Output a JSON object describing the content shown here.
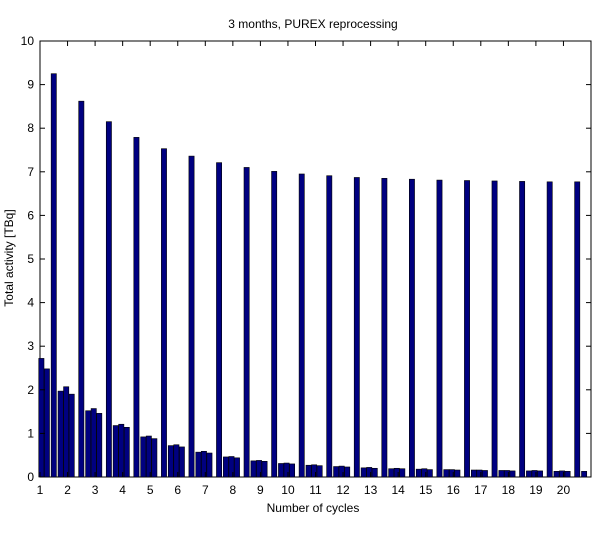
{
  "chart_data": {
    "type": "bar",
    "title": "3 months, PUREX reprocessing",
    "xlabel": "Number of cycles",
    "ylabel": "Total activity [TBq]",
    "xlim": [
      1,
      21
    ],
    "ylim": [
      0,
      10
    ],
    "xticks": [
      1,
      2,
      3,
      4,
      5,
      6,
      7,
      8,
      9,
      10,
      11,
      12,
      13,
      14,
      15,
      16,
      17,
      18,
      19,
      20
    ],
    "yticks": [
      0,
      1,
      2,
      3,
      4,
      5,
      6,
      7,
      8,
      9,
      10
    ],
    "bar_color": "#000080",
    "grid": false,
    "bars": [
      {
        "x": 1.05,
        "y": 2.72
      },
      {
        "x": 1.25,
        "y": 2.48
      },
      {
        "x": 1.5,
        "y": 9.25
      },
      {
        "x": 1.75,
        "y": 1.97
      },
      {
        "x": 1.95,
        "y": 2.07
      },
      {
        "x": 2.15,
        "y": 1.9
      },
      {
        "x": 2.5,
        "y": 8.62
      },
      {
        "x": 2.75,
        "y": 1.52
      },
      {
        "x": 2.95,
        "y": 1.57
      },
      {
        "x": 3.15,
        "y": 1.46
      },
      {
        "x": 3.5,
        "y": 8.15
      },
      {
        "x": 3.75,
        "y": 1.18
      },
      {
        "x": 3.95,
        "y": 1.21
      },
      {
        "x": 4.15,
        "y": 1.14
      },
      {
        "x": 4.5,
        "y": 7.79
      },
      {
        "x": 4.75,
        "y": 0.92
      },
      {
        "x": 4.95,
        "y": 0.94
      },
      {
        "x": 5.15,
        "y": 0.88
      },
      {
        "x": 5.5,
        "y": 7.53
      },
      {
        "x": 5.75,
        "y": 0.72
      },
      {
        "x": 5.95,
        "y": 0.74
      },
      {
        "x": 6.15,
        "y": 0.69
      },
      {
        "x": 6.5,
        "y": 7.36
      },
      {
        "x": 6.75,
        "y": 0.57
      },
      {
        "x": 6.95,
        "y": 0.59
      },
      {
        "x": 7.15,
        "y": 0.55
      },
      {
        "x": 7.5,
        "y": 7.21
      },
      {
        "x": 7.75,
        "y": 0.46
      },
      {
        "x": 7.95,
        "y": 0.47
      },
      {
        "x": 8.15,
        "y": 0.44
      },
      {
        "x": 8.5,
        "y": 7.1
      },
      {
        "x": 8.75,
        "y": 0.37
      },
      {
        "x": 8.95,
        "y": 0.38
      },
      {
        "x": 9.15,
        "y": 0.36
      },
      {
        "x": 9.5,
        "y": 7.01
      },
      {
        "x": 9.75,
        "y": 0.31
      },
      {
        "x": 9.95,
        "y": 0.32
      },
      {
        "x": 10.15,
        "y": 0.3
      },
      {
        "x": 10.5,
        "y": 6.95
      },
      {
        "x": 10.75,
        "y": 0.27
      },
      {
        "x": 10.95,
        "y": 0.28
      },
      {
        "x": 11.15,
        "y": 0.26
      },
      {
        "x": 11.5,
        "y": 6.91
      },
      {
        "x": 11.75,
        "y": 0.24
      },
      {
        "x": 11.95,
        "y": 0.25
      },
      {
        "x": 12.15,
        "y": 0.23
      },
      {
        "x": 12.5,
        "y": 6.87
      },
      {
        "x": 12.75,
        "y": 0.21
      },
      {
        "x": 12.95,
        "y": 0.22
      },
      {
        "x": 13.15,
        "y": 0.2
      },
      {
        "x": 13.5,
        "y": 6.85
      },
      {
        "x": 13.75,
        "y": 0.19
      },
      {
        "x": 13.95,
        "y": 0.2
      },
      {
        "x": 14.15,
        "y": 0.19
      },
      {
        "x": 14.5,
        "y": 6.83
      },
      {
        "x": 14.75,
        "y": 0.18
      },
      {
        "x": 14.95,
        "y": 0.19
      },
      {
        "x": 15.15,
        "y": 0.17
      },
      {
        "x": 15.5,
        "y": 6.81
      },
      {
        "x": 15.75,
        "y": 0.17
      },
      {
        "x": 15.95,
        "y": 0.17
      },
      {
        "x": 16.15,
        "y": 0.16
      },
      {
        "x": 16.5,
        "y": 6.8
      },
      {
        "x": 16.75,
        "y": 0.16
      },
      {
        "x": 16.95,
        "y": 0.16
      },
      {
        "x": 17.15,
        "y": 0.15
      },
      {
        "x": 17.5,
        "y": 6.79
      },
      {
        "x": 17.75,
        "y": 0.15
      },
      {
        "x": 17.95,
        "y": 0.15
      },
      {
        "x": 18.15,
        "y": 0.14
      },
      {
        "x": 18.5,
        "y": 6.78
      },
      {
        "x": 18.75,
        "y": 0.14
      },
      {
        "x": 18.95,
        "y": 0.15
      },
      {
        "x": 19.15,
        "y": 0.14
      },
      {
        "x": 19.5,
        "y": 6.77
      },
      {
        "x": 19.75,
        "y": 0.13
      },
      {
        "x": 19.95,
        "y": 0.14
      },
      {
        "x": 20.15,
        "y": 0.13
      },
      {
        "x": 20.5,
        "y": 6.77
      },
      {
        "x": 20.75,
        "y": 0.13
      }
    ]
  }
}
